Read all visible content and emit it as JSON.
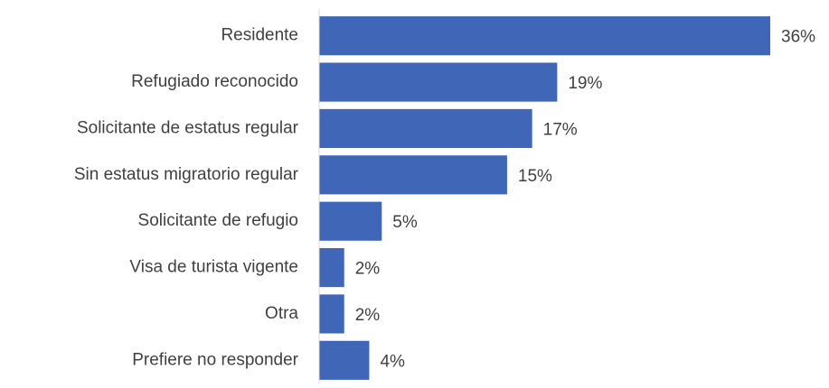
{
  "chart_data": {
    "type": "bar",
    "orientation": "horizontal",
    "categories": [
      "Residente",
      "Refugiado reconocido",
      "Solicitante de estatus regular",
      "Sin estatus migratorio regular",
      "Solicitante de refugio",
      "Visa de turista vigente",
      "Otra",
      "Prefiere no responder"
    ],
    "values": [
      36,
      19,
      17,
      15,
      5,
      2,
      2,
      4
    ],
    "value_labels": [
      "36%",
      "19%",
      "17%",
      "15%",
      "5%",
      "2%",
      "2%",
      "4%"
    ],
    "color": "#4066b8"
  }
}
